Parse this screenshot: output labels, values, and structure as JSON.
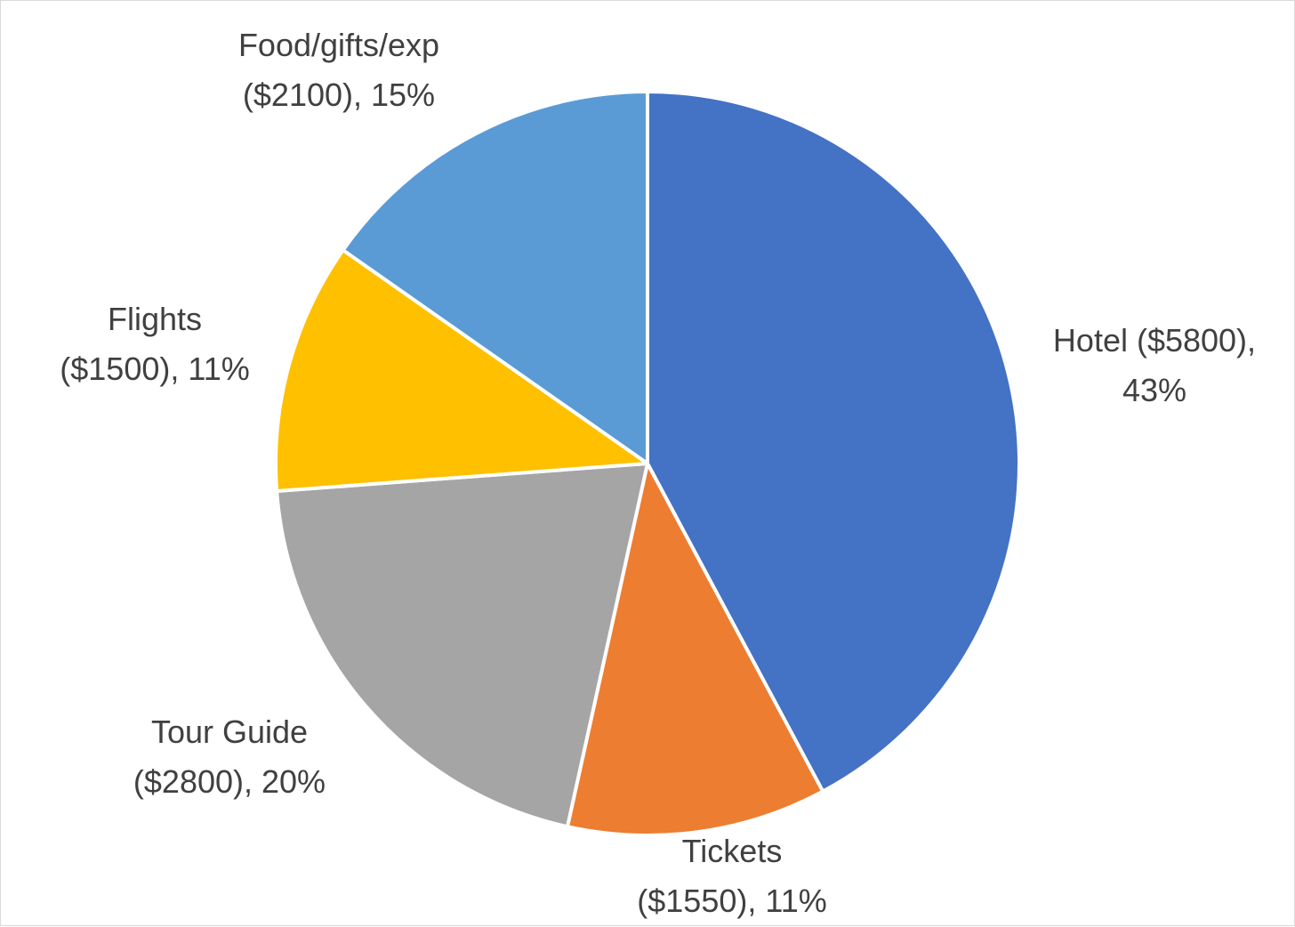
{
  "chart_data": {
    "type": "pie",
    "slices": [
      {
        "name": "Hotel",
        "value": 5800,
        "percent": 43,
        "color": "#4472C4",
        "label_lines": [
          "Hotel ($5800),",
          "43%"
        ]
      },
      {
        "name": "Tickets",
        "value": 1550,
        "percent": 11,
        "color": "#ED7D31",
        "label_lines": [
          "Tickets",
          "($1550), 11%"
        ]
      },
      {
        "name": "Tour Guide",
        "value": 2800,
        "percent": 20,
        "color": "#A5A5A5",
        "label_lines": [
          "Tour Guide",
          "($2800), 20%"
        ]
      },
      {
        "name": "Flights",
        "value": 1500,
        "percent": 11,
        "color": "#FFC000",
        "label_lines": [
          "Flights",
          "($1500), 11%"
        ]
      },
      {
        "name": "Food/gifts/exp",
        "value": 2100,
        "percent": 15,
        "color": "#5B9BD5",
        "label_lines": [
          "Food/gifts/exp",
          "($2100), 15%"
        ]
      }
    ],
    "start_angle": "12 o'clock",
    "direction": "clockwise",
    "legend": "none",
    "labels": "outside-end"
  }
}
